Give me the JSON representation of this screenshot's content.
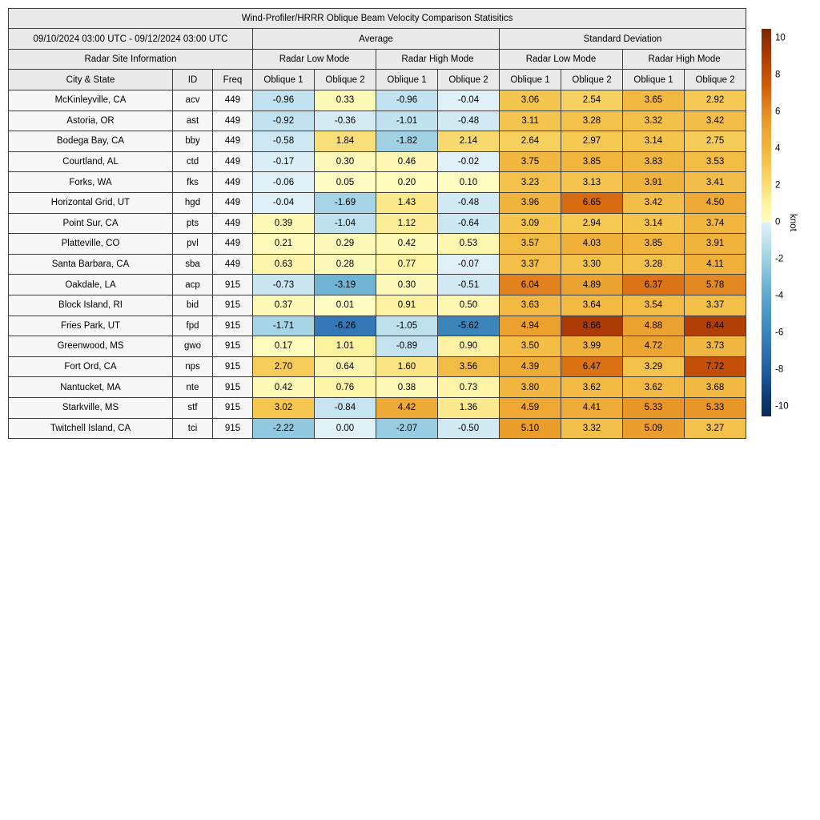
{
  "title": "Wind-Profiler/HRRR Oblique Beam Velocity Comparison Statisitics",
  "header": {
    "date_range": "09/10/2024 03:00 UTC - 09/12/2024 03:00 UTC",
    "group_average": "Average",
    "group_stddev": "Standard Deviation",
    "site_info": "Radar Site Information",
    "mode_headers": [
      "Radar Low Mode",
      "Radar High Mode",
      "Radar Low Mode",
      "Radar High Mode"
    ],
    "col_headers": [
      "City & State",
      "ID",
      "Freq",
      "Oblique 1",
      "Oblique 2",
      "Oblique 1",
      "Oblique 2",
      "Oblique 1",
      "Oblique 2",
      "Oblique 1",
      "Oblique 2"
    ]
  },
  "chart_data": {
    "type": "heatmap",
    "title": "Wind-Profiler/HRRR Oblique Beam Velocity Comparison Statisitics",
    "value_columns": [
      "Average Radar Low Mode Oblique 1",
      "Average Radar Low Mode Oblique 2",
      "Average Radar High Mode Oblique 1",
      "Average Radar High Mode Oblique 2",
      "Std Dev Radar Low Mode Oblique 1",
      "Std Dev Radar Low Mode Oblique 2",
      "Std Dev Radar High Mode Oblique 1",
      "Std Dev Radar High Mode Oblique 2"
    ],
    "rows": [
      {
        "city": "McKinleyville, CA",
        "id": "acv",
        "freq": "449",
        "values": [
          "-0.96",
          "0.33",
          "-0.96",
          "-0.04",
          "3.06",
          "2.54",
          "3.65",
          "2.92"
        ]
      },
      {
        "city": "Astoria, OR",
        "id": "ast",
        "freq": "449",
        "values": [
          "-0.92",
          "-0.36",
          "-1.01",
          "-0.48",
          "3.11",
          "3.28",
          "3.32",
          "3.42"
        ]
      },
      {
        "city": "Bodega Bay, CA",
        "id": "bby",
        "freq": "449",
        "values": [
          "-0.58",
          "1.84",
          "-1.82",
          "2.14",
          "2.64",
          "2.97",
          "3.14",
          "2.75"
        ]
      },
      {
        "city": "Courtland, AL",
        "id": "ctd",
        "freq": "449",
        "values": [
          "-0.17",
          "0.30",
          "0.46",
          "-0.02",
          "3.75",
          "3.85",
          "3.83",
          "3.53"
        ]
      },
      {
        "city": "Forks, WA",
        "id": "fks",
        "freq": "449",
        "values": [
          "-0.06",
          "0.05",
          "0.20",
          "0.10",
          "3.23",
          "3.13",
          "3.91",
          "3.41"
        ]
      },
      {
        "city": "Horizontal Grid, UT",
        "id": "hgd",
        "freq": "449",
        "values": [
          "-0.04",
          "-1.69",
          "1.43",
          "-0.48",
          "3.96",
          "6.65",
          "3.42",
          "4.50"
        ]
      },
      {
        "city": "Point Sur, CA",
        "id": "pts",
        "freq": "449",
        "values": [
          "0.39",
          "-1.04",
          "1.12",
          "-0.64",
          "3.09",
          "2.94",
          "3.14",
          "3.74"
        ]
      },
      {
        "city": "Platteville, CO",
        "id": "pvl",
        "freq": "449",
        "values": [
          "0.21",
          "0.29",
          "0.42",
          "0.53",
          "3.57",
          "4.03",
          "3.85",
          "3.91"
        ]
      },
      {
        "city": "Santa Barbara, CA",
        "id": "sba",
        "freq": "449",
        "values": [
          "0.63",
          "0.28",
          "0.77",
          "-0.07",
          "3.37",
          "3.30",
          "3.28",
          "4.11"
        ]
      },
      {
        "city": "Oakdale, LA",
        "id": "acp",
        "freq": "915",
        "values": [
          "-0.73",
          "-3.19",
          "0.30",
          "-0.51",
          "6.04",
          "4.89",
          "6.37",
          "5.78"
        ]
      },
      {
        "city": "Block Island, RI",
        "id": "bid",
        "freq": "915",
        "values": [
          "0.37",
          "0.01",
          "0.91",
          "0.50",
          "3.63",
          "3.64",
          "3.54",
          "3.37"
        ]
      },
      {
        "city": "Fries Park, UT",
        "id": "fpd",
        "freq": "915",
        "values": [
          "-1.71",
          "-6.26",
          "-1.05",
          "-5.62",
          "4.94",
          "8.66",
          "4.88",
          "8.44"
        ]
      },
      {
        "city": "Greenwood, MS",
        "id": "gwo",
        "freq": "915",
        "values": [
          "0.17",
          "1.01",
          "-0.89",
          "0.90",
          "3.50",
          "3.99",
          "4.72",
          "3.73"
        ]
      },
      {
        "city": "Fort Ord, CA",
        "id": "nps",
        "freq": "915",
        "values": [
          "2.70",
          "0.64",
          "1.60",
          "3.56",
          "4.39",
          "6.47",
          "3.29",
          "7.72"
        ]
      },
      {
        "city": "Nantucket, MA",
        "id": "nte",
        "freq": "915",
        "values": [
          "0.42",
          "0.76",
          "0.38",
          "0.73",
          "3.80",
          "3.62",
          "3.62",
          "3.68"
        ]
      },
      {
        "city": "Starkville, MS",
        "id": "stf",
        "freq": "915",
        "values": [
          "3.02",
          "-0.84",
          "4.42",
          "1.36",
          "4.59",
          "4.41",
          "5.33",
          "5.33"
        ]
      },
      {
        "city": "Twitchell Island, CA",
        "id": "tci",
        "freq": "915",
        "values": [
          "-2.22",
          "0.00",
          "-2.07",
          "-0.50",
          "5.10",
          "3.32",
          "5.09",
          "3.27"
        ]
      }
    ],
    "colorbar": {
      "label": "knot",
      "range": [
        -10,
        10
      ],
      "ticks": [
        10,
        8,
        6,
        4,
        2,
        0,
        -2,
        -4,
        -6,
        -8,
        -10
      ]
    }
  },
  "colormap": {
    "positive_stops": [
      [
        0,
        "#fefdc4"
      ],
      [
        1,
        "#fcf19e"
      ],
      [
        2,
        "#f9dc72"
      ],
      [
        3,
        "#f5c750"
      ],
      [
        4,
        "#f0b23b"
      ],
      [
        5,
        "#eca02e"
      ],
      [
        6,
        "#e2811e"
      ],
      [
        7,
        "#d15f0b"
      ],
      [
        8,
        "#bc4805"
      ],
      [
        9,
        "#a03504"
      ],
      [
        10,
        "#782704"
      ]
    ],
    "negative_stops": [
      [
        0,
        "#e0f1f7"
      ],
      [
        1,
        "#c0e1ee"
      ],
      [
        2,
        "#9bcee2"
      ],
      [
        3,
        "#76b8d6"
      ],
      [
        4,
        "#58a3ca"
      ],
      [
        5,
        "#4390c1"
      ],
      [
        6,
        "#377eb8"
      ],
      [
        7,
        "#2a6aac"
      ],
      [
        8,
        "#1b5295"
      ],
      [
        9,
        "#0e3a72"
      ],
      [
        10,
        "#082a56"
      ]
    ],
    "header_bg": "#e9e9e9",
    "site_cell_bg": "#f7f7f7",
    "grid_color": "#3d3d3d"
  }
}
